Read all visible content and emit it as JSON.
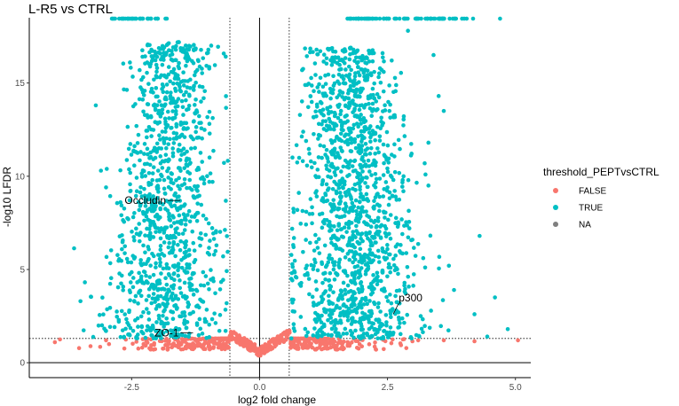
{
  "chart_data": {
    "type": "scatter",
    "title": "L-R5 vs CTRL",
    "xlabel": "log2 fold change",
    "ylabel": "-log10 LFDR",
    "xlim": [
      -4.5,
      5.3
    ],
    "ylim": [
      -0.8,
      18.5
    ],
    "xticks": [
      -2.5,
      0.0,
      2.5,
      5.0
    ],
    "xtick_labels": [
      "-2.5",
      "0.0",
      "2.5",
      "5.0"
    ],
    "yticks": [
      0,
      5,
      10,
      15
    ],
    "ytick_labels": [
      "0",
      "5",
      "10",
      "15"
    ],
    "vlines_dotted": [
      -0.58,
      0.58
    ],
    "hline_dotted": 1.3,
    "vline_solid": 0,
    "hline_solid": 0,
    "legend": {
      "title": "threshold_PEPTvsCTRL",
      "position": "right",
      "entries": [
        {
          "label": "FALSE",
          "color": "#F8766D"
        },
        {
          "label": "TRUE",
          "color": "#00BFC4"
        },
        {
          "label": "NA",
          "color": "#7F7F7F"
        }
      ]
    },
    "series": [
      {
        "name": "TRUE",
        "color": "#00BFC4",
        "clusters": [
          {
            "x_center": -1.9,
            "x_spread": 0.55,
            "y_min": 1.3,
            "y_max": 17.2,
            "count": 1100,
            "side": "left"
          },
          {
            "x_center": 1.95,
            "x_spread": 0.6,
            "y_min": 1.3,
            "y_max": 16.9,
            "count": 1400,
            "side": "right"
          }
        ],
        "points": [
          {
            "x": -3.2,
            "y": 13.8
          },
          {
            "x": -3.1,
            "y": 10.3
          },
          {
            "x": -3.0,
            "y": 9.4
          },
          {
            "x": -3.5,
            "y": 3.3
          },
          {
            "x": -3.0,
            "y": 1.7
          },
          {
            "x": 2.9,
            "y": 17.8
          },
          {
            "x": 3.4,
            "y": 16.5
          },
          {
            "x": 3.5,
            "y": 14.3
          },
          {
            "x": 3.6,
            "y": 13.5
          },
          {
            "x": 3.3,
            "y": 11.8
          },
          {
            "x": 3.7,
            "y": 5.2
          },
          {
            "x": 4.3,
            "y": 6.8
          },
          {
            "x": 4.6,
            "y": 3.5
          },
          {
            "x": 4.45,
            "y": 1.4
          },
          {
            "x": 4.85,
            "y": 1.8
          },
          {
            "x": 3.3,
            "y": 9.5
          },
          {
            "x": 3.8,
            "y": 3.9
          },
          {
            "x": 4.2,
            "y": 2.6
          }
        ],
        "capped_count": 120,
        "capped_y": 18.5
      },
      {
        "name": "FALSE",
        "color": "#F8766D",
        "description": "points near origin with -log10 LFDR below threshold or |log2FC| below 0.58",
        "count": 700,
        "points": [
          {
            "x": -4.0,
            "y": 1.1
          },
          {
            "x": -3.9,
            "y": 1.25
          },
          {
            "x": -3.0,
            "y": 1.2
          },
          {
            "x": 3.1,
            "y": 1.2
          },
          {
            "x": 3.6,
            "y": 1.2
          },
          {
            "x": 4.2,
            "y": 1.15
          },
          {
            "x": 5.05,
            "y": 1.2
          },
          {
            "x": 2.6,
            "y": 1.25
          },
          {
            "x": 2.8,
            "y": 1.25
          }
        ]
      }
    ],
    "annotations": [
      {
        "label": "Occludin",
        "x": -1.55,
        "y": 8.7
      },
      {
        "label": "ZO-1",
        "x": -1.3,
        "y": 1.6
      },
      {
        "label": "p300",
        "x": 2.65,
        "y": 3.0
      }
    ]
  }
}
